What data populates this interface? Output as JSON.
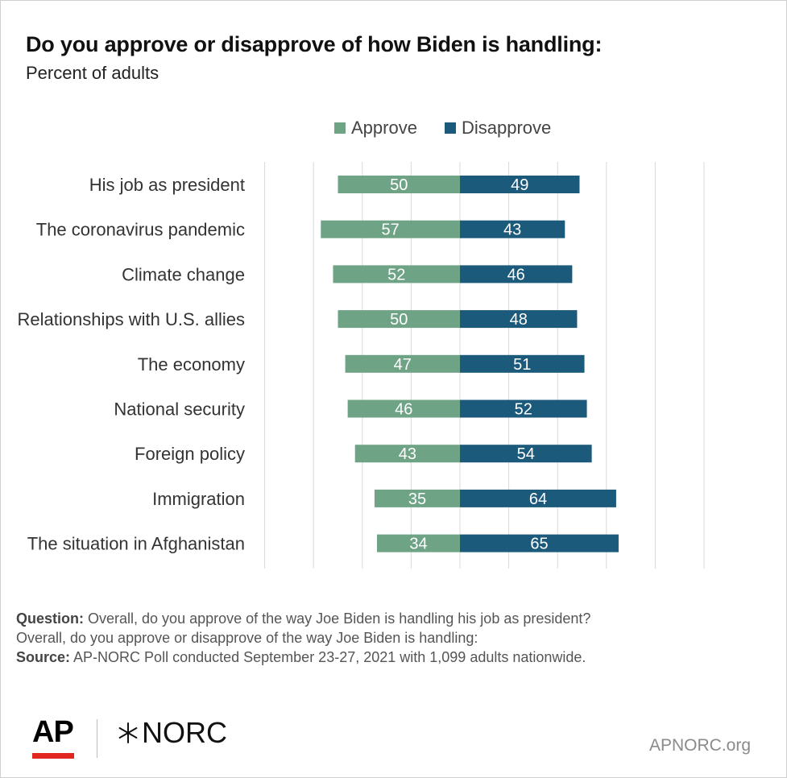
{
  "chart_data": {
    "type": "bar",
    "orientation": "horizontal-diverging",
    "title": "Do you approve or disapprove of how Biden is handling:",
    "subtitle": "Percent of adults",
    "categories": [
      "His job as president",
      "The coronavirus pandemic",
      "Climate change",
      "Relationships with U.S. allies",
      "The economy",
      "National security",
      "Foreign policy",
      "Immigration",
      "The situation in Afghanistan"
    ],
    "series": [
      {
        "name": "Approve",
        "color": "#6fa386",
        "direction": "left",
        "values": [
          50,
          57,
          52,
          50,
          47,
          46,
          43,
          35,
          34
        ]
      },
      {
        "name": "Disapprove",
        "color": "#1c5a7c",
        "direction": "right",
        "values": [
          49,
          43,
          46,
          48,
          51,
          52,
          54,
          64,
          65
        ]
      }
    ],
    "xlim": [
      -100,
      100
    ],
    "grid": true,
    "legend_position": "top-center",
    "label_color": "#ffffff",
    "grid_color": "#d9d9d9"
  },
  "footnote": {
    "question_label": "Question:",
    "question_text": "Overall, do you approve of the way Joe Biden is handling his job as president?",
    "question_text_2": "Overall, do you approve or disapprove of the way Joe Biden is handling:",
    "source_label": "Source:",
    "source_text": "AP-NORC Poll conducted September 23-27, 2021 with 1,099 adults nationwide."
  },
  "branding": {
    "ap_logo": "AP",
    "norc_logo": "NORC",
    "site": "APNORC.org",
    "ap_accent": "#e0261f"
  }
}
